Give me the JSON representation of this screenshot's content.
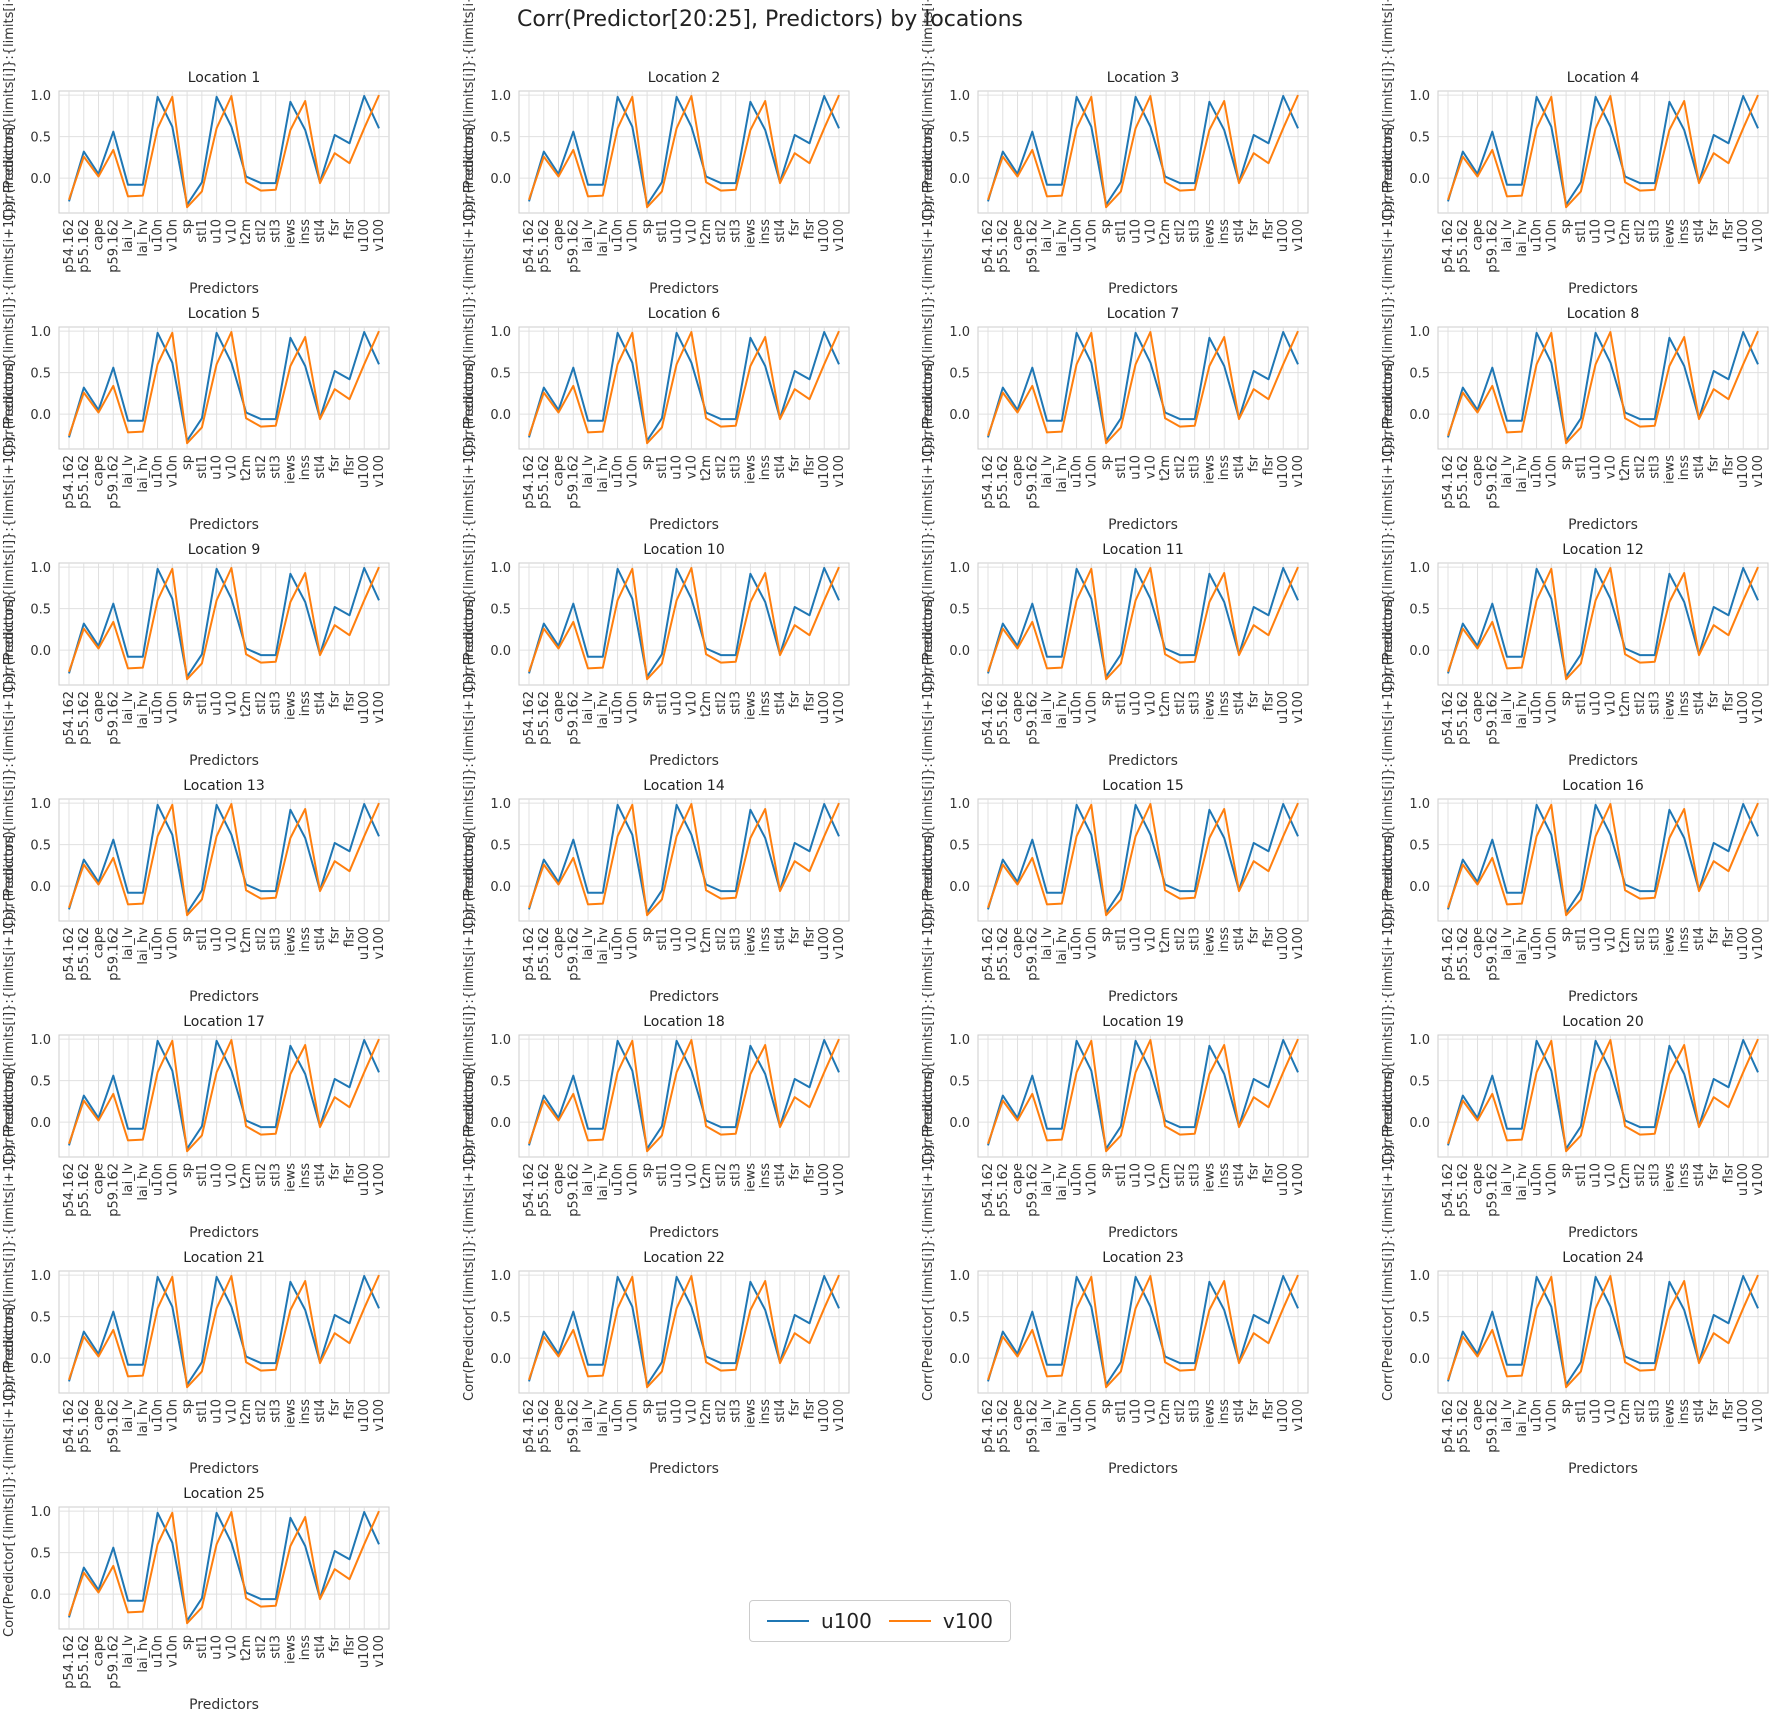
{
  "figure": {
    "title": "Corr(Predictor[20:25], Predictors) by locations"
  },
  "chart_data": {
    "type": "line",
    "grid_layout": {
      "rows": 7,
      "cols": 4
    },
    "panel_titles": [
      "Location 1",
      "Location 2",
      "Location 3",
      "Location 4",
      "Location 5",
      "Location 6",
      "Location 7",
      "Location 8",
      "Location 9",
      "Location 10",
      "Location 11",
      "Location 12",
      "Location 13",
      "Location 14",
      "Location 15",
      "Location 16",
      "Location 17",
      "Location 18",
      "Location 19",
      "Location 20",
      "Location 21",
      "Location 22",
      "Location 23",
      "Location 24",
      "Location 25"
    ],
    "xlabel": "Predictors",
    "ylabel": "Corr(Predictor[{limits[i]}:{limits[i+1]}], Predictors)",
    "categories": [
      "p54.162",
      "p55.162",
      "cape",
      "p59.162",
      "lai_lv",
      "lai_hv",
      "u10n",
      "v10n",
      "sp",
      "stl1",
      "u10",
      "v10",
      "t2m",
      "stl2",
      "stl3",
      "iews",
      "inss",
      "stl4",
      "fsr",
      "flsr",
      "u100",
      "v100"
    ],
    "ylim": [
      -0.42,
      1.05
    ],
    "yticks": [
      0.0,
      0.5,
      1.0
    ],
    "ytick_labels": [
      "0.0",
      "0.5",
      "1.0"
    ],
    "grid": true,
    "legend_placement": "bottom-center",
    "series": [
      {
        "name": "u100",
        "color": "#1f77b4",
        "values": [
          -0.28,
          0.32,
          0.05,
          0.56,
          -0.08,
          -0.08,
          0.98,
          0.62,
          -0.32,
          -0.05,
          0.98,
          0.62,
          0.02,
          -0.06,
          -0.06,
          0.92,
          0.58,
          -0.05,
          0.52,
          0.42,
          0.99,
          0.6
        ]
      },
      {
        "name": "v100",
        "color": "#ff7f0e",
        "values": [
          -0.26,
          0.26,
          0.02,
          0.34,
          -0.22,
          -0.21,
          0.6,
          0.98,
          -0.35,
          -0.16,
          0.6,
          0.99,
          -0.05,
          -0.15,
          -0.14,
          0.58,
          0.93,
          -0.06,
          0.3,
          0.18,
          0.6,
          1.0
        ]
      }
    ]
  }
}
